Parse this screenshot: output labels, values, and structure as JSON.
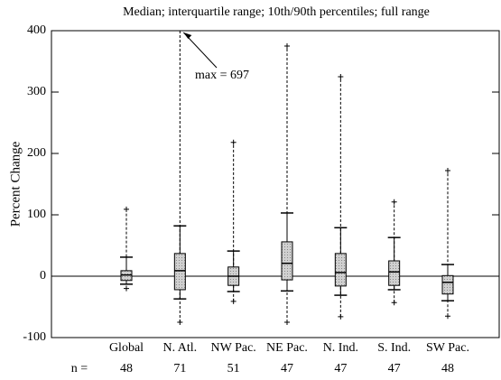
{
  "chart_data": {
    "type": "box",
    "title": "Median; interquartile range; 10th/90th percentiles; full range",
    "y_label": "Percent Change",
    "annotation": "max = 697",
    "categories": [
      "Global",
      "N. Atl.",
      "NW Pac.",
      "NE Pac.",
      "N. Ind.",
      "S. Ind.",
      "SW Pac."
    ],
    "min": [
      -20,
      -75,
      -41,
      -75,
      -66,
      -43,
      -65
    ],
    "p10": [
      -13,
      -37,
      -25,
      -24,
      -31,
      -22,
      -40
    ],
    "q1": [
      -7,
      -22,
      -15,
      -6,
      -16,
      -15,
      -29
    ],
    "median": [
      2,
      9,
      0,
      21,
      6,
      7,
      -10
    ],
    "q3": [
      9,
      37,
      15,
      56,
      37,
      25,
      1
    ],
    "p90": [
      31,
      82,
      41,
      103,
      79,
      63,
      19
    ],
    "max": [
      109,
      697,
      218,
      375,
      325,
      121,
      172
    ],
    "n_label": "n =",
    "n": [
      48,
      71,
      51,
      47,
      47,
      47,
      48
    ],
    "color": "#c8c8c8",
    "ylim": [
      -100,
      400
    ],
    "yticks": [
      -100,
      0,
      100,
      200,
      300,
      400
    ]
  }
}
